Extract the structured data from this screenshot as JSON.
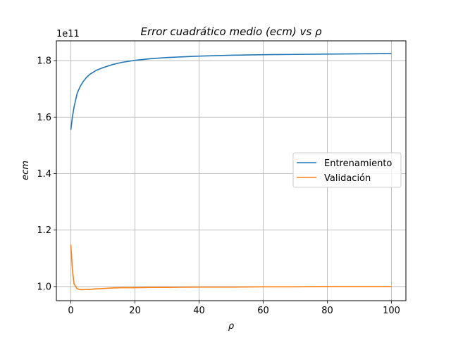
{
  "chart_data": {
    "type": "line",
    "title": "Error cuadrático medio (ecm) vs ρ",
    "xlabel": "ρ",
    "ylabel": "ecm",
    "offset_label": "1e11",
    "xlim": [
      -4.5,
      104.5
    ],
    "ylim": [
      0.95,
      1.87
    ],
    "x_ticks": [
      0,
      20,
      40,
      60,
      80,
      100
    ],
    "y_ticks": [
      1.0,
      1.2,
      1.4,
      1.6,
      1.8
    ],
    "x_tick_labels": [
      "0",
      "20",
      "40",
      "60",
      "80",
      "100"
    ],
    "y_tick_labels": [
      "1.0",
      "1.2",
      "1.4",
      "1.6",
      "1.8"
    ],
    "grid": true,
    "legend_position": "center-right",
    "series": [
      {
        "name": "Entrenamiento",
        "color": "#1f77b4",
        "x": [
          0,
          0.5,
          1,
          1.5,
          2,
          3,
          4,
          5,
          6,
          8,
          10,
          13,
          16,
          20,
          25,
          30,
          40,
          50,
          60,
          70,
          80,
          90,
          100
        ],
        "values": [
          1.555,
          1.6,
          1.635,
          1.66,
          1.685,
          1.71,
          1.728,
          1.742,
          1.752,
          1.766,
          1.775,
          1.786,
          1.794,
          1.801,
          1.807,
          1.811,
          1.816,
          1.819,
          1.821,
          1.822,
          1.823,
          1.824,
          1.825
        ]
      },
      {
        "name": "Validación",
        "color": "#ff7f0e",
        "x": [
          0,
          0.5,
          1,
          1.5,
          2,
          3,
          4,
          5,
          6,
          8,
          10,
          13,
          16,
          20,
          25,
          30,
          40,
          50,
          60,
          70,
          80,
          90,
          100
        ],
        "values": [
          1.148,
          1.06,
          1.01,
          1.0,
          0.992,
          0.989,
          0.989,
          0.99,
          0.99,
          0.992,
          0.993,
          0.995,
          0.996,
          0.996,
          0.997,
          0.997,
          0.998,
          0.998,
          0.999,
          0.999,
          1.0,
          1.0,
          1.0
        ]
      }
    ]
  }
}
